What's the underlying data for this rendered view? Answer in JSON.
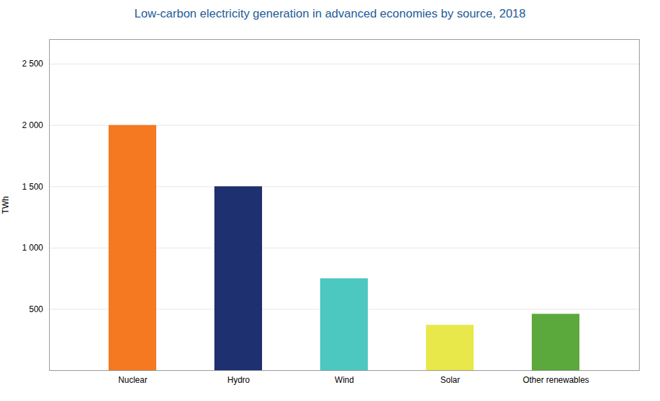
{
  "chart_data": {
    "type": "bar",
    "title": "Low-carbon electricity generation in advanced economies by source, 2018",
    "title_color": "#1F5C99",
    "categories": [
      "Nuclear",
      "Hydro",
      "Wind",
      "Solar",
      "Other renewables"
    ],
    "values": [
      2000,
      1500,
      750,
      370,
      460
    ],
    "colors": [
      "#F47920",
      "#1F3070",
      "#4DC8C0",
      "#E8E84A",
      "#5BA83C"
    ],
    "ylabel": "TWh",
    "ylim": [
      0,
      2700
    ],
    "yticks": [
      500,
      {
        "value": 1000,
        "label": "1 000"
      },
      {
        "value": 1500,
        "label": "1 500"
      },
      {
        "value": 2000,
        "label": "2 000"
      },
      {
        "value": 2500,
        "label": "2 500"
      }
    ],
    "grid": true
  }
}
